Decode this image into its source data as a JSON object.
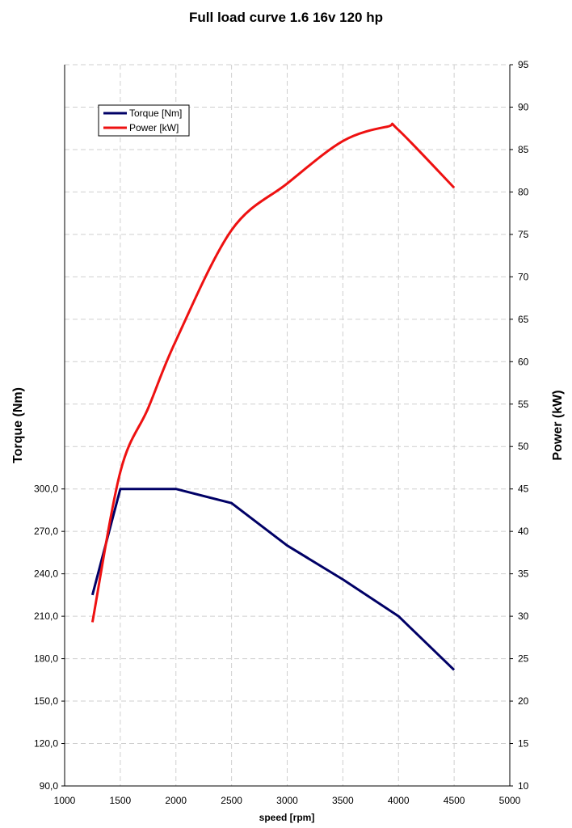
{
  "chart_data": {
    "type": "line",
    "title": "Full load curve 1.6 16v 120 hp",
    "xlabel": "speed [rpm]",
    "ylabel_left": "Torque (Nm)",
    "ylabel_right": "Power (kW)",
    "xlim": [
      1000,
      5000
    ],
    "x_ticks": [
      "1000",
      "1500",
      "2000",
      "2500",
      "3000",
      "3500",
      "4000",
      "4500",
      "5000"
    ],
    "ylim_left": [
      90,
      300
    ],
    "ylim_right": [
      10,
      95
    ],
    "y_left_ticks": [
      "90,0",
      "120,0",
      "150,0",
      "180,0",
      "210,0",
      "240,0",
      "270,0",
      "300,0"
    ],
    "y_right_ticks": [
      "10",
      "15",
      "20",
      "25",
      "30",
      "35",
      "40",
      "45",
      "50",
      "55",
      "60",
      "65",
      "70",
      "75",
      "80",
      "85",
      "90",
      "95"
    ],
    "grid": true,
    "legend_position": "top-left",
    "series": [
      {
        "name": "Torque [Nm]",
        "axis": "left",
        "color": "#000066",
        "x": [
          1250,
          1500,
          2000,
          2500,
          3000,
          3500,
          4000,
          4500
        ],
        "values": [
          225,
          300,
          300,
          290,
          260,
          236,
          210,
          172
        ]
      },
      {
        "name": "Power [kW]",
        "axis": "right",
        "color": "#ee1111",
        "x": [
          1250,
          1500,
          1750,
          2000,
          2500,
          3000,
          3500,
          3900,
          4000,
          4500
        ],
        "values": [
          29.3,
          47,
          54.5,
          62.5,
          75.5,
          81,
          86,
          87.7,
          87.3,
          80.5
        ]
      }
    ]
  }
}
